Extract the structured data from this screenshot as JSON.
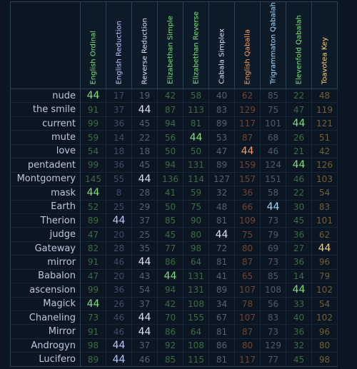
{
  "columns": [
    {
      "label": "English Ordinal",
      "color": "#7ee080"
    },
    {
      "label": "English Reduction",
      "color": "#b4c8ff"
    },
    {
      "label": "Reverse Reduction",
      "color": "#d2e4f8"
    },
    {
      "label": "Elizabethan Simple",
      "color": "#7ee080"
    },
    {
      "label": "Elizabethan Reverse",
      "color": "#7ee080"
    },
    {
      "label": "Cabala Simplex",
      "color": "#d2e4f8"
    },
    {
      "label": "English Qaballa",
      "color": "#f0a068"
    },
    {
      "label": "Trigrammaton Qabalah",
      "color": "#a8d8ff"
    },
    {
      "label": "Elevenfold Qabalah",
      "color": "#7ee080"
    },
    {
      "label": "Toavotea Key",
      "color": "#f3cf86"
    }
  ],
  "dim_colors": [
    "#3d6a45",
    "#3e4c6a",
    "#55616f",
    "#3d6a45",
    "#3d6a45",
    "#55616f",
    "#6b4536",
    "#4a5d70",
    "#3d6a45",
    "#6f5f3a"
  ],
  "hit_colors": [
    "#7ee080",
    "#b4c8ff",
    "#d2e4f8",
    "#7ee080",
    "#7ee080",
    "#d2e4f8",
    "#f0a068",
    "#a8d8ff",
    "#7ee080",
    "#f3cf86"
  ],
  "rows": [
    {
      "label": "nude",
      "values": [
        "44",
        "17",
        "19",
        "42",
        "58",
        "40",
        "62",
        "85",
        "22",
        "48"
      ],
      "hits": [
        0
      ]
    },
    {
      "label": "the smile",
      "values": [
        "91",
        "37",
        "44",
        "87",
        "113",
        "83",
        "129",
        "75",
        "47",
        "119"
      ],
      "hits": [
        2
      ]
    },
    {
      "label": "current",
      "values": [
        "99",
        "36",
        "45",
        "94",
        "81",
        "89",
        "117",
        "101",
        "44",
        "121"
      ],
      "hits": [
        8
      ]
    },
    {
      "label": "mute",
      "values": [
        "59",
        "14",
        "22",
        "56",
        "44",
        "53",
        "87",
        "68",
        "26",
        "51"
      ],
      "hits": [
        4
      ]
    },
    {
      "label": "love",
      "values": [
        "54",
        "18",
        "18",
        "50",
        "50",
        "47",
        "44",
        "46",
        "21",
        "42"
      ],
      "hits": [
        6
      ]
    },
    {
      "label": "pentadent",
      "values": [
        "99",
        "36",
        "45",
        "94",
        "131",
        "89",
        "159",
        "124",
        "44",
        "126"
      ],
      "hits": [
        8
      ]
    },
    {
      "label": "Montgomery",
      "values": [
        "145",
        "55",
        "44",
        "136",
        "114",
        "127",
        "157",
        "151",
        "46",
        "103"
      ],
      "hits": [
        2
      ]
    },
    {
      "label": "mask",
      "values": [
        "44",
        "8",
        "28",
        "41",
        "59",
        "32",
        "36",
        "58",
        "22",
        "54"
      ],
      "hits": [
        0
      ]
    },
    {
      "label": "Earth",
      "values": [
        "52",
        "25",
        "29",
        "50",
        "75",
        "48",
        "66",
        "44",
        "30",
        "83"
      ],
      "hits": [
        7
      ]
    },
    {
      "label": "Therion",
      "values": [
        "89",
        "44",
        "37",
        "85",
        "90",
        "81",
        "109",
        "73",
        "45",
        "101"
      ],
      "hits": [
        1
      ]
    },
    {
      "label": "judge",
      "values": [
        "47",
        "20",
        "25",
        "45",
        "80",
        "44",
        "75",
        "79",
        "36",
        "62"
      ],
      "hits": [
        5
      ]
    },
    {
      "label": "Gateway",
      "values": [
        "82",
        "28",
        "35",
        "77",
        "98",
        "72",
        "80",
        "69",
        "27",
        "44"
      ],
      "hits": [
        9
      ]
    },
    {
      "label": "mirror",
      "values": [
        "91",
        "46",
        "44",
        "86",
        "64",
        "81",
        "87",
        "73",
        "36",
        "96"
      ],
      "hits": [
        2
      ]
    },
    {
      "label": "Babalon",
      "values": [
        "47",
        "20",
        "43",
        "44",
        "131",
        "41",
        "65",
        "85",
        "14",
        "79"
      ],
      "hits": [
        3
      ]
    },
    {
      "label": "ascension",
      "values": [
        "99",
        "36",
        "54",
        "94",
        "131",
        "89",
        "107",
        "108",
        "44",
        "102"
      ],
      "hits": [
        8
      ]
    },
    {
      "label": "Magick",
      "values": [
        "44",
        "26",
        "37",
        "42",
        "108",
        "34",
        "78",
        "56",
        "33",
        "54"
      ],
      "hits": [
        0
      ]
    },
    {
      "label": "Chaneling",
      "values": [
        "73",
        "46",
        "44",
        "70",
        "155",
        "67",
        "107",
        "83",
        "40",
        "102"
      ],
      "hits": [
        2
      ]
    },
    {
      "label": "Mirror",
      "values": [
        "91",
        "46",
        "44",
        "86",
        "64",
        "81",
        "87",
        "73",
        "36",
        "96"
      ],
      "hits": [
        2
      ]
    },
    {
      "label": "Androgyn",
      "values": [
        "98",
        "44",
        "37",
        "92",
        "108",
        "86",
        "80",
        "129",
        "32",
        "80"
      ],
      "hits": [
        1
      ]
    },
    {
      "label": "Lucifero",
      "values": [
        "89",
        "44",
        "46",
        "85",
        "115",
        "81",
        "117",
        "77",
        "45",
        "98"
      ],
      "hits": [
        1
      ]
    }
  ]
}
